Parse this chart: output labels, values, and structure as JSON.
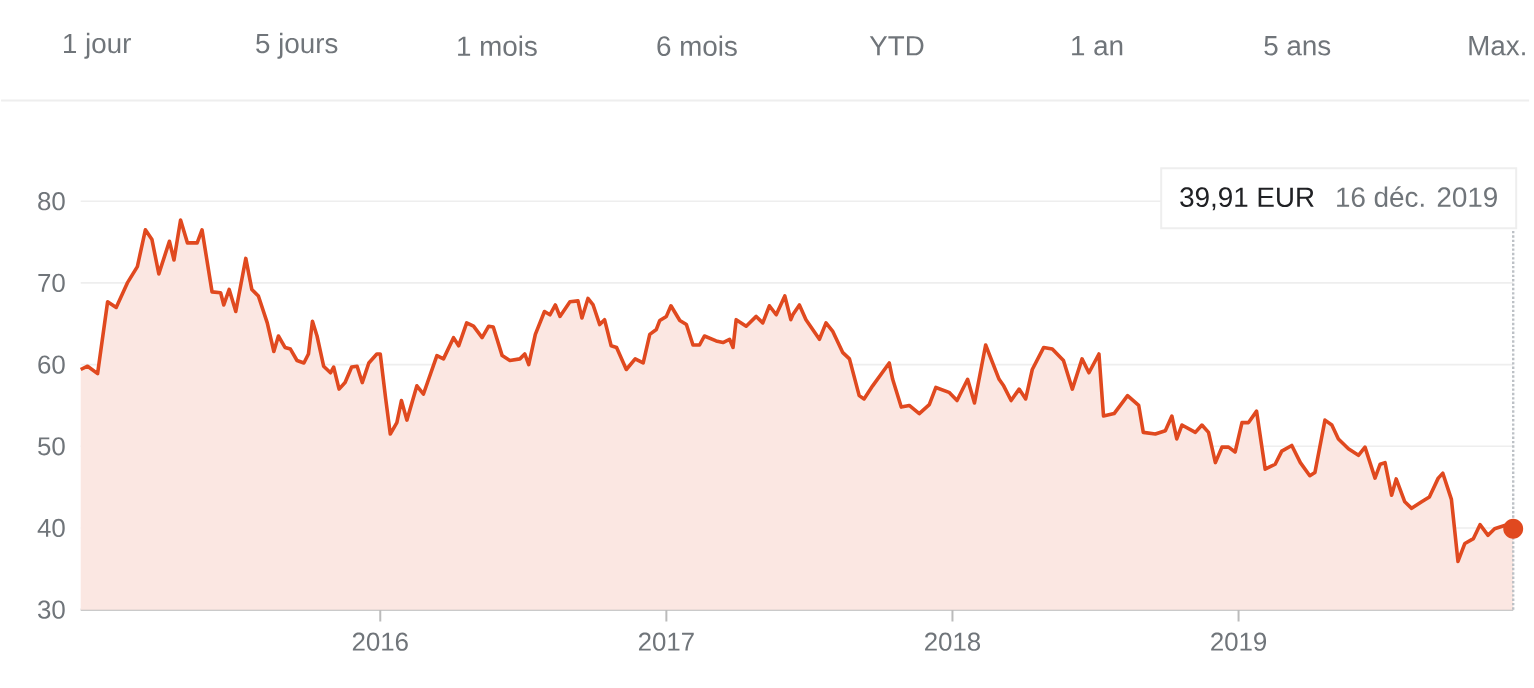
{
  "chart_data": {
    "type": "area",
    "xlim": [
      2014.953,
      2019.96
    ],
    "ylim": [
      30,
      80
    ],
    "xticks": [
      2016,
      2017,
      2018,
      2019
    ],
    "yticks": [
      30,
      40,
      50,
      60,
      70,
      80
    ],
    "grid": "y",
    "series": [
      {
        "color": "#e0491f",
        "x": [
          2014.953,
          2014.977,
          2015.012,
          2015.047,
          2015.077,
          2015.116,
          2015.151,
          2015.179,
          2015.202,
          2015.226,
          2015.263,
          2015.279,
          2015.302,
          2015.326,
          2015.36,
          2015.377,
          2015.412,
          2015.442,
          2015.453,
          2015.472,
          2015.495,
          2015.53,
          2015.551,
          2015.574,
          2015.605,
          2015.628,
          2015.644,
          2015.667,
          2015.686,
          2015.709,
          2015.733,
          2015.749,
          2015.763,
          2015.779,
          2015.802,
          2015.826,
          2015.837,
          2015.856,
          2015.877,
          2015.9,
          2015.919,
          2015.937,
          2015.96,
          2015.988,
          2016.0,
          2016.019,
          2016.035,
          2016.058,
          2016.074,
          2016.093,
          2016.128,
          2016.151,
          2016.198,
          2016.221,
          2016.256,
          2016.274,
          2016.302,
          2016.326,
          2016.356,
          2016.379,
          2016.395,
          2016.426,
          2016.453,
          2016.488,
          2016.505,
          2016.519,
          2016.542,
          2016.574,
          2016.593,
          2016.612,
          2016.628,
          2016.663,
          2016.691,
          2016.705,
          2016.726,
          2016.744,
          2016.767,
          2016.784,
          2016.807,
          2016.826,
          2016.86,
          2016.891,
          2016.919,
          2016.942,
          2016.965,
          2016.977,
          2017.0,
          2017.016,
          2017.047,
          2017.07,
          2017.093,
          2017.116,
          2017.133,
          2017.174,
          2017.198,
          2017.221,
          2017.233,
          2017.244,
          2017.279,
          2017.314,
          2017.337,
          2017.36,
          2017.384,
          2017.414,
          2017.435,
          2017.442,
          2017.465,
          2017.488,
          2017.535,
          2017.558,
          2017.581,
          2017.616,
          2017.64,
          2017.674,
          2017.691,
          2017.721,
          2017.779,
          2017.791,
          2017.821,
          2017.849,
          2017.884,
          2017.919,
          2017.942,
          2017.988,
          2018.016,
          2018.053,
          2018.077,
          2018.116,
          2018.163,
          2018.179,
          2018.205,
          2018.233,
          2018.256,
          2018.279,
          2018.319,
          2018.349,
          2018.388,
          2018.419,
          2018.453,
          2018.477,
          2018.512,
          2018.528,
          2018.565,
          2018.612,
          2018.651,
          2018.667,
          2018.709,
          2018.744,
          2018.767,
          2018.784,
          2018.802,
          2018.849,
          2018.872,
          2018.895,
          2018.919,
          2018.942,
          2018.965,
          2018.988,
          2019.012,
          2019.035,
          2019.063,
          2019.093,
          2019.128,
          2019.151,
          2019.186,
          2019.216,
          2019.249,
          2019.267,
          2019.302,
          2019.326,
          2019.349,
          2019.384,
          2019.419,
          2019.442,
          2019.477,
          2019.495,
          2019.512,
          2019.535,
          2019.551,
          2019.581,
          2019.605,
          2019.64,
          2019.667,
          2019.698,
          2019.714,
          2019.744,
          2019.767,
          2019.791,
          2019.821,
          2019.844,
          2019.872,
          2019.895,
          2019.93,
          2019.96
        ],
        "values": [
          59.4,
          59.8,
          58.9,
          67.7,
          67.0,
          70.0,
          72.0,
          76.5,
          75.3,
          71.1,
          75.1,
          72.8,
          77.7,
          74.9,
          74.9,
          76.5,
          68.9,
          68.8,
          67.3,
          69.2,
          66.5,
          73.0,
          69.2,
          68.4,
          65.1,
          61.6,
          63.5,
          62.1,
          61.9,
          60.5,
          60.2,
          61.3,
          65.3,
          63.5,
          59.8,
          59.0,
          59.7,
          57.0,
          57.8,
          59.7,
          59.8,
          57.8,
          60.2,
          61.3,
          61.3,
          55.8,
          51.5,
          52.9,
          55.6,
          53.2,
          57.4,
          56.4,
          61.1,
          60.7,
          63.3,
          62.3,
          65.1,
          64.7,
          63.3,
          64.7,
          64.6,
          61.1,
          60.5,
          60.7,
          61.3,
          60.0,
          63.7,
          66.5,
          66.1,
          67.3,
          65.9,
          67.7,
          67.8,
          65.7,
          68.1,
          67.3,
          64.9,
          65.5,
          62.3,
          62.1,
          59.4,
          60.7,
          60.2,
          63.7,
          64.3,
          65.4,
          65.9,
          67.2,
          65.4,
          64.9,
          62.4,
          62.4,
          63.5,
          62.9,
          62.7,
          63.1,
          62.1,
          65.5,
          64.7,
          65.9,
          65.1,
          67.2,
          66.1,
          68.4,
          65.5,
          66.1,
          67.3,
          65.5,
          63.1,
          65.1,
          64.1,
          61.5,
          60.7,
          56.2,
          55.8,
          57.4,
          60.2,
          58.2,
          54.8,
          55.0,
          54.0,
          55.1,
          57.2,
          56.6,
          55.6,
          58.2,
          55.3,
          62.4,
          58.2,
          57.4,
          55.6,
          57.0,
          55.8,
          59.4,
          62.1,
          61.9,
          60.5,
          57.0,
          60.7,
          59.0,
          61.3,
          53.7,
          54.0,
          56.2,
          55.0,
          51.7,
          51.5,
          51.9,
          53.7,
          50.9,
          52.6,
          51.7,
          52.6,
          51.7,
          48.0,
          49.9,
          49.9,
          49.3,
          52.9,
          52.9,
          54.3,
          47.2,
          47.8,
          49.4,
          50.1,
          48.0,
          46.4,
          46.8,
          53.2,
          52.6,
          50.9,
          49.7,
          48.9,
          49.9,
          46.1,
          47.8,
          48.0,
          44.0,
          46.0,
          43.2,
          42.4,
          43.2,
          43.8,
          46.1,
          46.7,
          43.5,
          35.9,
          38.1,
          38.7,
          40.4,
          39.1,
          39.9,
          40.3,
          39.91
        ]
      }
    ],
    "ref_lines": [
      {
        "axis": "x",
        "value": 2019.96,
        "color": "#bdc1c6",
        "line_style": "dotted"
      }
    ],
    "annotations": [
      "39,91 EUR",
      "16 déc. 2019",
      "1 jour",
      "5 jours",
      "1 mois",
      "6 mois",
      "YTD",
      "1 an",
      "5 ans",
      "Max."
    ]
  }
}
